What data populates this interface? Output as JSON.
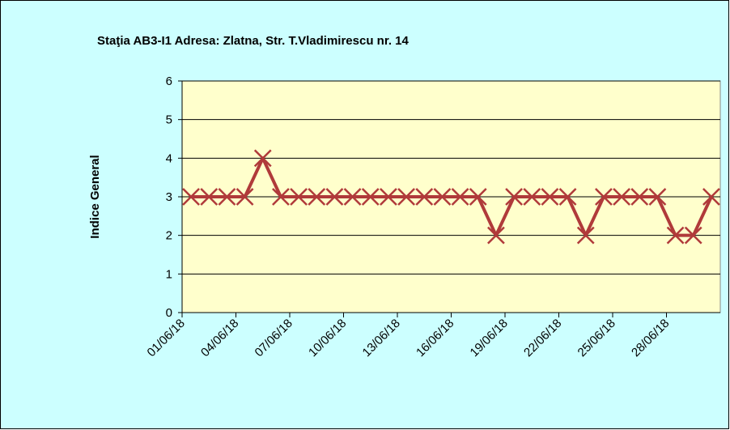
{
  "chart_data": {
    "type": "line",
    "title": "Staţia AB3-I1 Adresa: Zlatna, Str. T.Vladimirescu nr. 14",
    "y_label": "Indice General",
    "categories": [
      "01/06/18",
      null,
      null,
      "04/06/18",
      null,
      null,
      "07/06/18",
      null,
      null,
      "10/06/18",
      null,
      null,
      "13/06/18",
      null,
      null,
      "16/06/18",
      null,
      null,
      "19/06/18",
      null,
      null,
      "22/06/18",
      null,
      null,
      "25/06/18",
      null,
      null,
      "28/06/18",
      null,
      null
    ],
    "values": [
      3,
      3,
      3,
      3,
      4,
      3,
      3,
      3,
      3,
      3,
      3,
      3,
      3,
      3,
      3,
      3,
      3,
      2,
      3,
      3,
      3,
      3,
      2,
      3,
      3,
      3,
      3,
      2,
      2,
      3
    ],
    "color": "#b03a3a",
    "ylim": [
      0,
      6
    ],
    "yticks": [
      0,
      1,
      2,
      3,
      4,
      5,
      6
    ],
    "grid": true
  }
}
